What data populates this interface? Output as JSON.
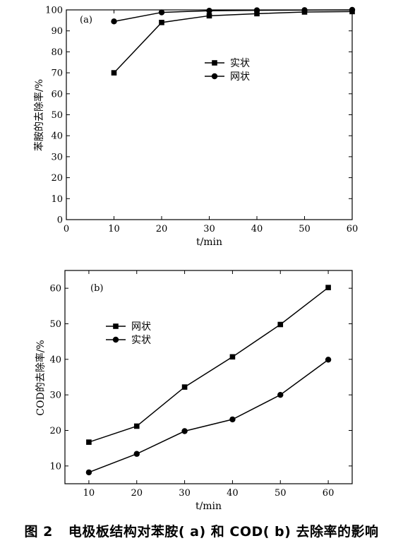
{
  "chart_data": [
    {
      "type": "line",
      "panel_label": "(a)",
      "xlabel": "t/min",
      "ylabel": "苯胺的去除率/%",
      "xlim": [
        0,
        60
      ],
      "ylim": [
        0,
        100
      ],
      "xticks": [
        0,
        10,
        20,
        30,
        40,
        50,
        60
      ],
      "yticks": [
        0,
        10,
        20,
        30,
        40,
        50,
        60,
        70,
        80,
        90,
        100
      ],
      "legend_position": "upper-right",
      "x": [
        10,
        20,
        30,
        40,
        50,
        60
      ],
      "series": [
        {
          "name": "实状",
          "marker": "square",
          "values": [
            70,
            94,
            97.2,
            98.2,
            99,
            99.2
          ]
        },
        {
          "name": "网状",
          "marker": "circle",
          "values": [
            94.5,
            98.8,
            99.6,
            99.8,
            99.9,
            100
          ]
        }
      ]
    },
    {
      "type": "line",
      "panel_label": "(b)",
      "xlabel": "t/min",
      "ylabel": "COD的去除率/%",
      "xlim": [
        5,
        65
      ],
      "ylim": [
        5,
        65
      ],
      "xticks": [
        10,
        20,
        30,
        40,
        50,
        60
      ],
      "yticks": [
        10,
        20,
        30,
        40,
        50,
        60
      ],
      "legend_position": "upper-left",
      "x": [
        10,
        20,
        30,
        40,
        50,
        60
      ],
      "series": [
        {
          "name": "网状",
          "marker": "square",
          "values": [
            16.7,
            21.2,
            32.2,
            40.7,
            49.8,
            60.2
          ]
        },
        {
          "name": "实状",
          "marker": "circle",
          "values": [
            8.2,
            13.4,
            19.8,
            23.1,
            30.0,
            39.9
          ]
        }
      ]
    }
  ],
  "caption": {
    "number": "图 2",
    "text": "电极板结构对苯胺( a) 和 COD( b) 去除率的影响"
  }
}
